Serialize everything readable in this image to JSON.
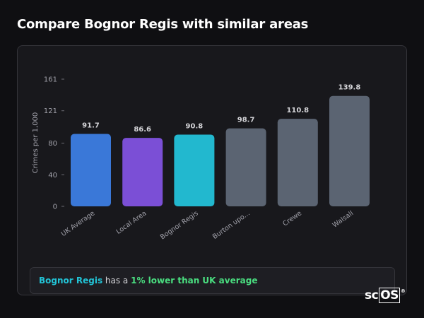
{
  "header": {
    "title": "Compare Bognor Regis with similar areas"
  },
  "chart_data": {
    "type": "bar",
    "title": "",
    "xlabel": "",
    "ylabel": "Crimes per 1,000",
    "ylim": [
      0,
      161
    ],
    "y_ticks": [
      0,
      40,
      80,
      121,
      161
    ],
    "grid": false,
    "legend": "none",
    "categories": [
      "UK Average",
      "Local Area",
      "Bognor Regis",
      "Burton upo...",
      "Crewe",
      "Walsall"
    ],
    "values": [
      91.7,
      86.6,
      90.8,
      98.7,
      110.8,
      139.8
    ],
    "value_labels": [
      "91.7",
      "86.6",
      "90.8",
      "98.7",
      "110.8",
      "139.8"
    ],
    "colors": [
      "#3a78d8",
      "#7b4fd6",
      "#22b8cf",
      "#5b6472",
      "#5b6472",
      "#5b6472"
    ]
  },
  "summary": {
    "area": "Bognor Regis",
    "text_middle": " has a ",
    "difference": "1% lower than UK average"
  },
  "brand": {
    "prefix": "sc",
    "boxed": "OS",
    "mark": "®"
  }
}
